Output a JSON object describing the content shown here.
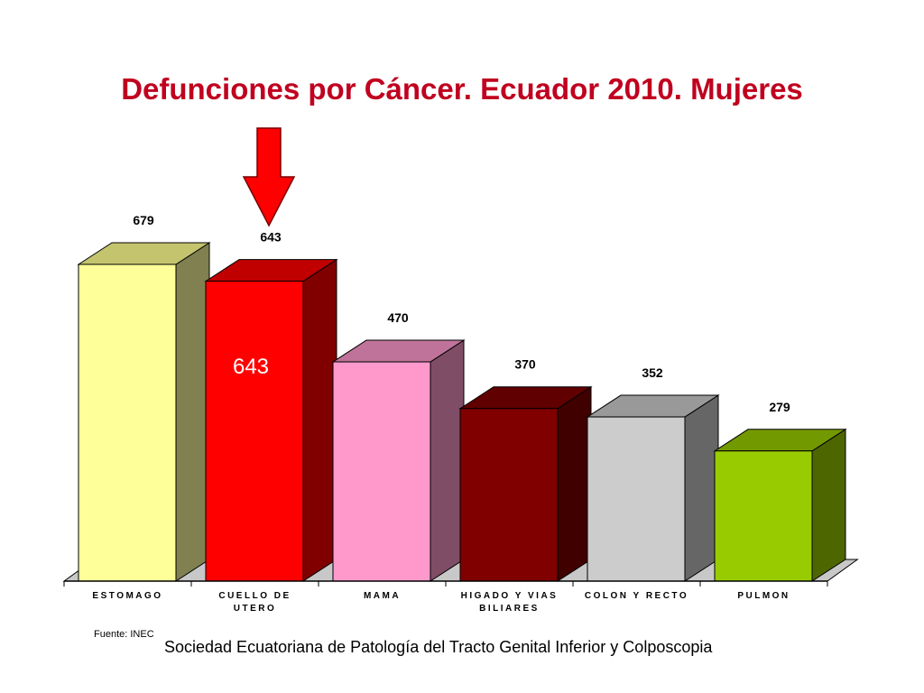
{
  "slide": {
    "title": "Defunciones por Cáncer.  Ecuador 2010. Mujeres",
    "source_note": "Fuente: INEC",
    "footer": "Sociedad Ecuatoriana de Patología del Tracto Genital Inferior y Colposcopia"
  },
  "chart_data": {
    "type": "bar",
    "three_d": true,
    "categories": [
      [
        "ESTOMAGO"
      ],
      [
        "CUELLO DE",
        "UTERO"
      ],
      [
        "MAMA"
      ],
      [
        "HIGADO Y VIAS",
        "BILIARES"
      ],
      [
        "COLON Y RECTO"
      ],
      [
        "PULMON"
      ]
    ],
    "values": [
      679,
      643,
      470,
      370,
      352,
      279
    ],
    "value_labels": [
      "679",
      "643",
      "470",
      "370",
      "352",
      "279"
    ],
    "inner_label": {
      "category_index": 1,
      "text": "643"
    },
    "highlight_arrow_category_index": 1,
    "title": "",
    "xlabel": "",
    "ylabel": "",
    "ylim": [
      0,
      700
    ],
    "grid": false,
    "colors": {
      "bars": [
        {
          "front": "#ffff99",
          "side": "#808050",
          "top": "#c4c46e"
        },
        {
          "front": "#ff0000",
          "side": "#800000",
          "top": "#c00000"
        },
        {
          "front": "#ff99cc",
          "side": "#804d66",
          "top": "#c0739a"
        },
        {
          "front": "#800000",
          "side": "#400000",
          "top": "#600000"
        },
        {
          "front": "#cccccc",
          "side": "#666666",
          "top": "#999999"
        },
        {
          "front": "#99cc00",
          "side": "#4d6600",
          "top": "#739900"
        }
      ],
      "arrow": "#ff0000",
      "title": "#c0001f"
    }
  }
}
